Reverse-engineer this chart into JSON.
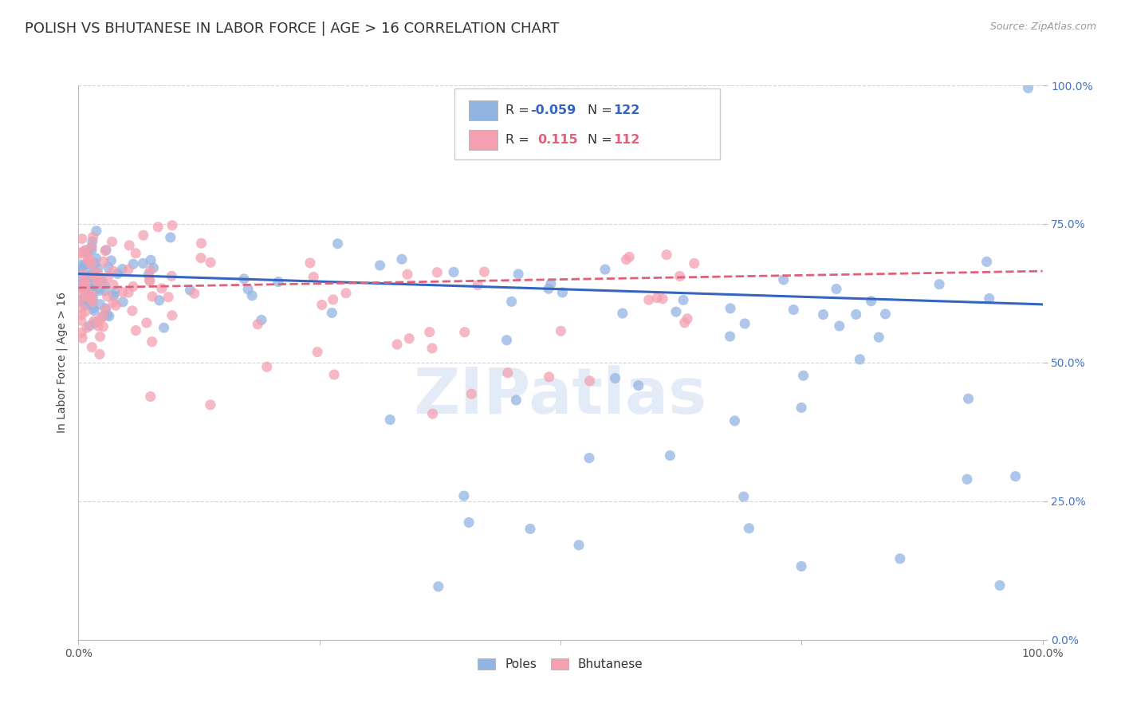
{
  "title": "POLISH VS BHUTANESE IN LABOR FORCE | AGE > 16 CORRELATION CHART",
  "source": "Source: ZipAtlas.com",
  "ylabel": "In Labor Force | Age > 16",
  "watermark": "ZIPatlas",
  "poles_R": -0.059,
  "poles_N": 122,
  "bhutanese_R": 0.115,
  "bhutanese_N": 112,
  "xlim": [
    0.0,
    1.0
  ],
  "ylim": [
    0.0,
    1.0
  ],
  "xticks": [
    0.0,
    0.25,
    0.5,
    0.75,
    1.0
  ],
  "yticks": [
    0.0,
    0.25,
    0.5,
    0.75,
    1.0
  ],
  "xticklabels": [
    "0.0%",
    "",
    "",
    "",
    "100.0%"
  ],
  "yticklabels_right": [
    "0.0%",
    "25.0%",
    "50.0%",
    "75.0%",
    "100.0%"
  ],
  "poles_color": "#92b4e3",
  "bhutanese_color": "#f4a0b0",
  "poles_line_color": "#3465c0",
  "bhutanese_line_color": "#e0607a",
  "background_color": "#ffffff",
  "grid_color": "#c8d8e8",
  "title_fontsize": 13,
  "tick_label_color_right": "#4472c4",
  "seed": 7
}
